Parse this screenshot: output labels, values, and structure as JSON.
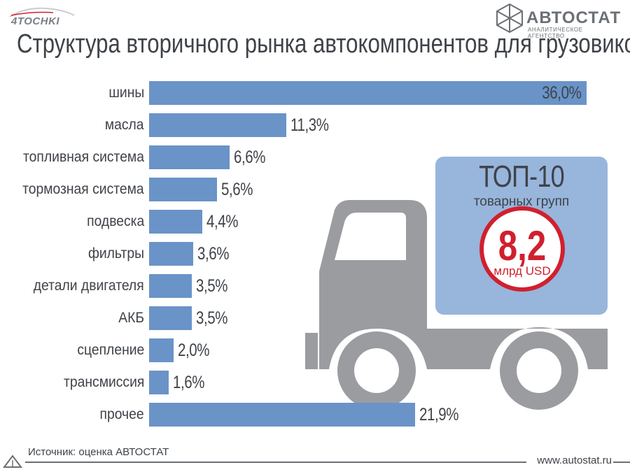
{
  "header": {
    "logo_left": "4TOCHKI",
    "logo_right": "АВТОСТАТ",
    "logo_right_tagline": "АНАЛИТИЧЕСКОЕ АГЕНТСТВО"
  },
  "chart_data": {
    "type": "bar",
    "orientation": "horizontal",
    "title": "Структура вторичного рынка автокомпонентов для грузовиков",
    "categories": [
      "шины",
      "масла",
      "топливная система",
      "тормозная система",
      "подвеска",
      "фильтры",
      "детали двигателя",
      "АКБ",
      "сцепление",
      "трансмиссия",
      "прочее"
    ],
    "values": [
      36.0,
      11.3,
      6.6,
      5.6,
      4.4,
      3.6,
      3.5,
      3.5,
      2.0,
      1.6,
      21.9
    ],
    "value_labels": [
      "36,0%",
      "11,3%",
      "6,6%",
      "5,6%",
      "4,4%",
      "3,6%",
      "3,5%",
      "3,5%",
      "2,0%",
      "1,6%",
      "21,9%"
    ],
    "unit": "%",
    "xlim": [
      0,
      36.0
    ],
    "grid": false,
    "bar_color": "#6a93c8"
  },
  "callout": {
    "title": "ТОП-10",
    "subtitle": "товарных групп",
    "value": "8,2",
    "unit": "млрд USD",
    "box_color": "#98b5dc",
    "truck_color": "#9a9ca0",
    "circle_color": "#d0202e"
  },
  "footer": {
    "source": "Источник: оценка АВТОСТАТ",
    "url": "www.autostat.ru"
  }
}
